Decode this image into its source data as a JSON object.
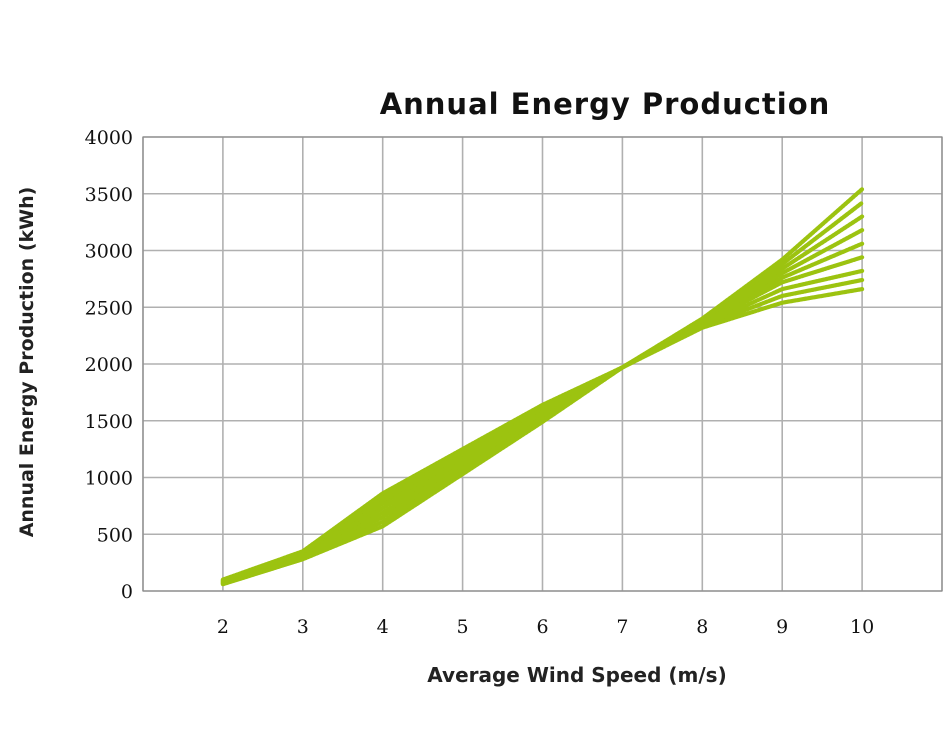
{
  "chart_data": {
    "type": "line",
    "title": "Annual Energy Production",
    "xlabel": "Average Wind Speed (m/s)",
    "ylabel": "Annual Energy Production (kWh)",
    "x": [
      2,
      3,
      4,
      5,
      6,
      7,
      8,
      9,
      10
    ],
    "xlim": [
      1,
      11
    ],
    "ylim": [
      0,
      4000
    ],
    "xticks": [
      "2",
      "3",
      "4",
      "5",
      "6",
      "7",
      "8",
      "9",
      "10"
    ],
    "yticks": [
      "0",
      "500",
      "1000",
      "1500",
      "2000",
      "2500",
      "3000",
      "3500",
      "4000"
    ],
    "grid": true,
    "legend": "none",
    "series_color": "#9cc310",
    "series": [
      {
        "values": [
          60,
          280,
          570,
          1030,
          1490,
          1970,
          2400,
          2920,
          3540
        ]
      },
      {
        "values": [
          65,
          285,
          610,
          1060,
          1510,
          1970,
          2390,
          2880,
          3420
        ]
      },
      {
        "values": [
          70,
          295,
          650,
          1090,
          1530,
          1970,
          2380,
          2840,
          3300
        ]
      },
      {
        "values": [
          75,
          305,
          690,
          1120,
          1550,
          1970,
          2370,
          2800,
          3180
        ]
      },
      {
        "values": [
          80,
          315,
          730,
          1150,
          1570,
          1970,
          2360,
          2760,
          3060
        ]
      },
      {
        "values": [
          85,
          325,
          770,
          1180,
          1590,
          1970,
          2350,
          2720,
          2940
        ]
      },
      {
        "values": [
          90,
          335,
          800,
          1210,
          1610,
          1970,
          2340,
          2660,
          2820
        ]
      },
      {
        "values": [
          95,
          340,
          830,
          1230,
          1620,
          1970,
          2330,
          2600,
          2740
        ]
      },
      {
        "values": [
          100,
          350,
          860,
          1250,
          1640,
          1970,
          2320,
          2540,
          2660
        ]
      }
    ]
  }
}
